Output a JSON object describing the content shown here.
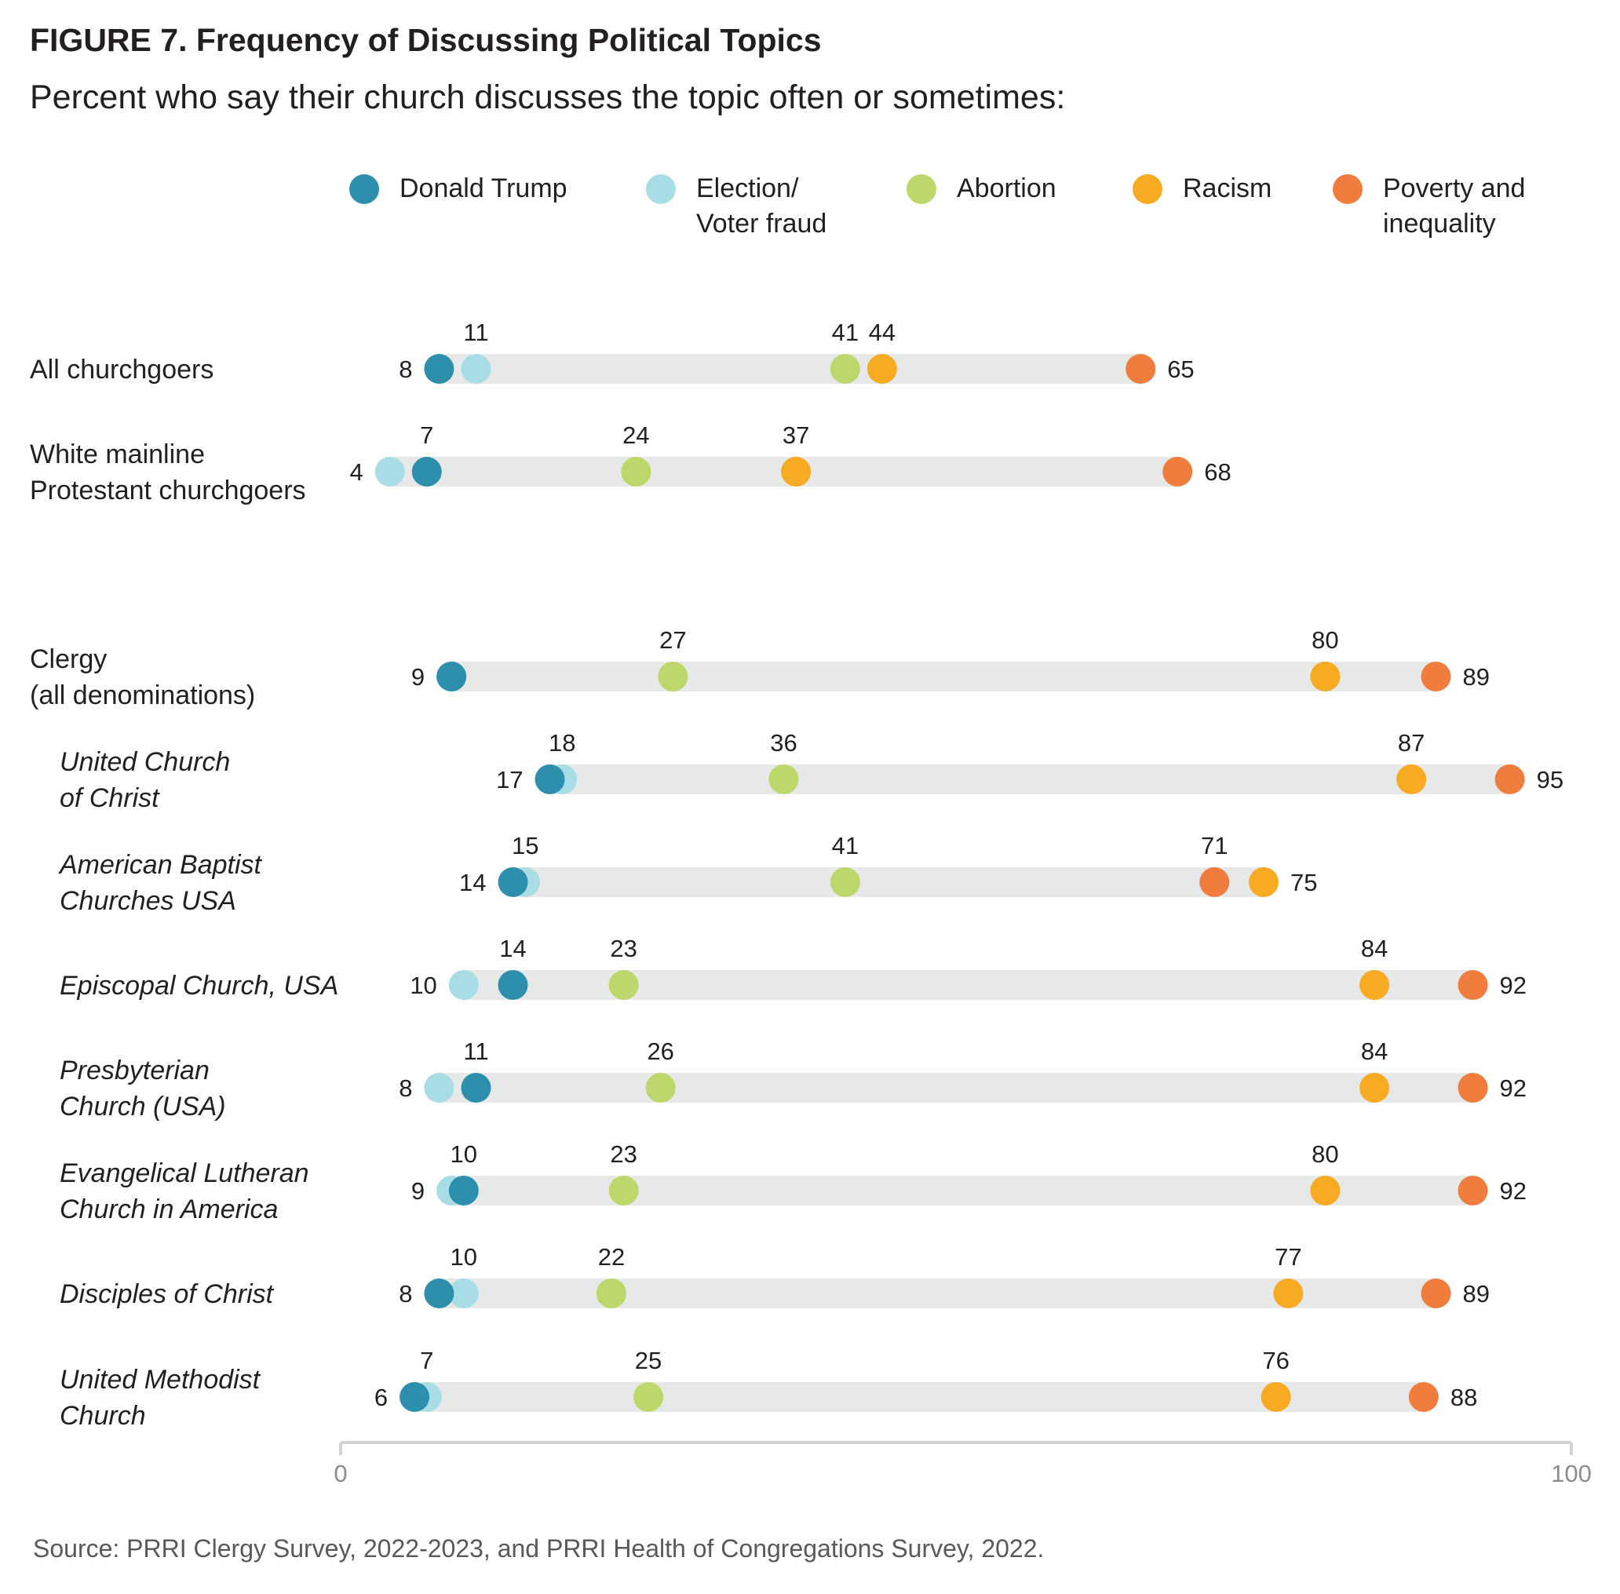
{
  "header": {
    "figure_label": "FIGURE 7.  Frequency of Discussing Political Topics",
    "subtitle": "Percent who say their church discusses the topic often or sometimes:"
  },
  "legend": [
    {
      "label": "Donald Trump",
      "color": "#2e8fad"
    },
    {
      "label": "Election/\nVoter fraud",
      "color": "#a8dde6"
    },
    {
      "label": "Abortion",
      "color": "#bcd76a"
    },
    {
      "label": "Racism",
      "color": "#f6ab22"
    },
    {
      "label": "Poverty and\ninequality",
      "color": "#f07d3d"
    }
  ],
  "source": "Source: PRRI Clergy Survey, 2022-2023, and PRRI Health of Congregations Survey, 2022.",
  "chart_data": {
    "type": "scatter",
    "variant": "dot-plot",
    "x_axis": {
      "ylim_note": "",
      "range": [
        0,
        100
      ],
      "ticks": [
        "0",
        "100"
      ]
    },
    "series_order": [
      "Donald Trump",
      "Election/Voter fraud",
      "Abortion",
      "Racism",
      "Poverty and inequality"
    ],
    "rows": [
      {
        "label": "All churchgoers",
        "italic": false,
        "group": 1,
        "values": [
          8,
          11,
          41,
          44,
          65
        ]
      },
      {
        "label": "White mainline\nProtestant churchgoers",
        "italic": false,
        "group": 1,
        "values": [
          7,
          4,
          24,
          37,
          68
        ]
      },
      {
        "label": "Clergy\n(all denominations)",
        "italic": false,
        "group": 2,
        "values": [
          9,
          9,
          27,
          80,
          89
        ]
      },
      {
        "label": "United Church\nof Christ",
        "italic": true,
        "group": 2,
        "values": [
          17,
          18,
          36,
          87,
          95
        ]
      },
      {
        "label": "American Baptist\nChurches USA",
        "italic": true,
        "group": 2,
        "values": [
          14,
          15,
          41,
          75,
          71
        ]
      },
      {
        "label": "Episcopal Church, USA",
        "italic": true,
        "group": 2,
        "values": [
          14,
          10,
          23,
          84,
          92
        ]
      },
      {
        "label": "Presbyterian\nChurch (USA)",
        "italic": true,
        "group": 2,
        "values": [
          11,
          8,
          26,
          84,
          92
        ]
      },
      {
        "label": "Evangelical Lutheran\nChurch in America",
        "italic": true,
        "group": 2,
        "values": [
          10,
          9,
          23,
          80,
          92
        ]
      },
      {
        "label": "Disciples of Christ",
        "italic": true,
        "group": 2,
        "values": [
          8,
          10,
          22,
          77,
          89
        ]
      },
      {
        "label": "United Methodist\nChurch",
        "italic": true,
        "group": 2,
        "values": [
          6,
          7,
          25,
          76,
          88
        ]
      }
    ],
    "point_labels": [
      {
        "row": 0,
        "items": [
          {
            "text": "8",
            "value": 8,
            "pos": "left"
          },
          {
            "text": "11",
            "value": 11,
            "pos": "above"
          },
          {
            "text": "41",
            "value": 41,
            "pos": "above"
          },
          {
            "text": "44",
            "value": 44,
            "pos": "above"
          },
          {
            "text": "65",
            "value": 65,
            "pos": "right"
          }
        ]
      },
      {
        "row": 1,
        "items": [
          {
            "text": "4",
            "value": 4,
            "pos": "left"
          },
          {
            "text": "7",
            "value": 7,
            "pos": "above"
          },
          {
            "text": "24",
            "value": 24,
            "pos": "above"
          },
          {
            "text": "37",
            "value": 37,
            "pos": "above"
          },
          {
            "text": "68",
            "value": 68,
            "pos": "right"
          }
        ]
      },
      {
        "row": 2,
        "items": [
          {
            "text": "9",
            "value": 9,
            "pos": "left"
          },
          {
            "text": "27",
            "value": 27,
            "pos": "above"
          },
          {
            "text": "80",
            "value": 80,
            "pos": "above"
          },
          {
            "text": "89",
            "value": 89,
            "pos": "right"
          }
        ]
      },
      {
        "row": 3,
        "items": [
          {
            "text": "17",
            "value": 17,
            "pos": "left"
          },
          {
            "text": "18",
            "value": 18,
            "pos": "above"
          },
          {
            "text": "36",
            "value": 36,
            "pos": "above"
          },
          {
            "text": "87",
            "value": 87,
            "pos": "above"
          },
          {
            "text": "95",
            "value": 95,
            "pos": "right"
          }
        ]
      },
      {
        "row": 4,
        "items": [
          {
            "text": "14",
            "value": 14,
            "pos": "left"
          },
          {
            "text": "15",
            "value": 15,
            "pos": "above"
          },
          {
            "text": "41",
            "value": 41,
            "pos": "above"
          },
          {
            "text": "71",
            "value": 71,
            "pos": "above"
          },
          {
            "text": "75",
            "value": 75,
            "pos": "right"
          }
        ]
      },
      {
        "row": 5,
        "items": [
          {
            "text": "10",
            "value": 10,
            "pos": "left"
          },
          {
            "text": "14",
            "value": 14,
            "pos": "above"
          },
          {
            "text": "23",
            "value": 23,
            "pos": "above"
          },
          {
            "text": "84",
            "value": 84,
            "pos": "above"
          },
          {
            "text": "92",
            "value": 92,
            "pos": "right"
          }
        ]
      },
      {
        "row": 6,
        "items": [
          {
            "text": "8",
            "value": 8,
            "pos": "left"
          },
          {
            "text": "11",
            "value": 11,
            "pos": "above"
          },
          {
            "text": "26",
            "value": 26,
            "pos": "above"
          },
          {
            "text": "84",
            "value": 84,
            "pos": "above"
          },
          {
            "text": "92",
            "value": 92,
            "pos": "right"
          }
        ]
      },
      {
        "row": 7,
        "items": [
          {
            "text": "9",
            "value": 9,
            "pos": "left"
          },
          {
            "text": "10",
            "value": 10,
            "pos": "above"
          },
          {
            "text": "23",
            "value": 23,
            "pos": "above"
          },
          {
            "text": "80",
            "value": 80,
            "pos": "above"
          },
          {
            "text": "92",
            "value": 92,
            "pos": "right"
          }
        ]
      },
      {
        "row": 8,
        "items": [
          {
            "text": "8",
            "value": 8,
            "pos": "left"
          },
          {
            "text": "10",
            "value": 10,
            "pos": "above"
          },
          {
            "text": "22",
            "value": 22,
            "pos": "above"
          },
          {
            "text": "77",
            "value": 77,
            "pos": "above"
          },
          {
            "text": "89",
            "value": 89,
            "pos": "right"
          }
        ]
      },
      {
        "row": 9,
        "items": [
          {
            "text": "6",
            "value": 6,
            "pos": "left"
          },
          {
            "text": "7",
            "value": 7,
            "pos": "above"
          },
          {
            "text": "25",
            "value": 25,
            "pos": "above"
          },
          {
            "text": "76",
            "value": 76,
            "pos": "above"
          },
          {
            "text": "88",
            "value": 88,
            "pos": "right"
          }
        ]
      }
    ]
  }
}
